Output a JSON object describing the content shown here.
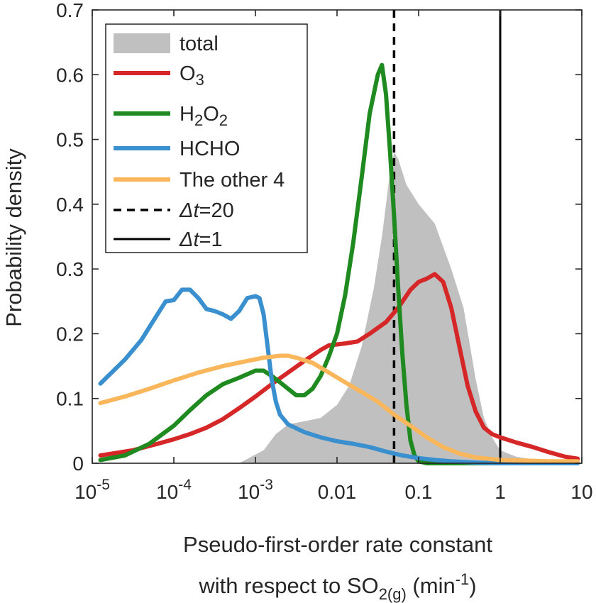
{
  "chart_data": {
    "type": "line",
    "x_scale": "log",
    "xlim": [
      1e-05,
      10
    ],
    "ylim": [
      0,
      0.7
    ],
    "grid": false,
    "legend_position": "top-left",
    "xlabel_line1": "Pseudo-first-order rate constant",
    "xlabel_line2": {
      "prefix": "with respect to SO",
      "sub": "2(g)",
      "middle": " (min",
      "sup": "-1",
      "suffix": ")"
    },
    "ylabel": "Probability density",
    "x_ticks": [
      {
        "value": 1e-05,
        "base": "10",
        "exp": "-5"
      },
      {
        "value": 0.0001,
        "base": "10",
        "exp": "-4"
      },
      {
        "value": 0.001,
        "base": "10",
        "exp": "-3"
      },
      {
        "value": 0.01,
        "label": "0.01"
      },
      {
        "value": 0.1,
        "label": "0.1"
      },
      {
        "value": 1,
        "label": "1"
      },
      {
        "value": 10,
        "label": "10"
      }
    ],
    "y_ticks": [
      {
        "value": 0,
        "label": "0"
      },
      {
        "value": 0.1,
        "label": "0.1"
      },
      {
        "value": 0.2,
        "label": "0.2"
      },
      {
        "value": 0.3,
        "label": "0.3"
      },
      {
        "value": 0.4,
        "label": "0.4"
      },
      {
        "value": 0.5,
        "label": "0.5"
      },
      {
        "value": 0.6,
        "label": "0.6"
      },
      {
        "value": 0.7,
        "label": "0.7"
      }
    ],
    "series": [
      {
        "id": "total",
        "name": "total",
        "kind": "area",
        "color": "#c0c0c0",
        "points": [
          [
            0.000631,
            0.0
          ],
          [
            0.00126,
            0.02
          ],
          [
            0.00178,
            0.045
          ],
          [
            0.00251,
            0.06
          ],
          [
            0.00398,
            0.065
          ],
          [
            0.00631,
            0.07
          ],
          [
            0.01,
            0.09
          ],
          [
            0.0141,
            0.12
          ],
          [
            0.02,
            0.18
          ],
          [
            0.0282,
            0.27
          ],
          [
            0.0355,
            0.35
          ],
          [
            0.0447,
            0.45
          ],
          [
            0.0501,
            0.48
          ],
          [
            0.0562,
            0.47
          ],
          [
            0.0708,
            0.43
          ],
          [
            0.1,
            0.4
          ],
          [
            0.158,
            0.37
          ],
          [
            0.251,
            0.3
          ],
          [
            0.355,
            0.24
          ],
          [
            0.5,
            0.13
          ],
          [
            0.631,
            0.07
          ],
          [
            0.794,
            0.04
          ],
          [
            1.0,
            0.02
          ],
          [
            1.58,
            0.01
          ],
          [
            3.16,
            0.004
          ],
          [
            8.91,
            0.002
          ],
          [
            8.91,
            0.0
          ]
        ]
      },
      {
        "id": "o3",
        "name": "O",
        "name_sub": "3",
        "kind": "line",
        "color": "#d62728",
        "points": [
          [
            1.26e-05,
            0.012
          ],
          [
            3.16e-05,
            0.02
          ],
          [
            6.31e-05,
            0.03
          ],
          [
            0.0001,
            0.037
          ],
          [
            0.000158,
            0.045
          ],
          [
            0.000251,
            0.055
          ],
          [
            0.000398,
            0.068
          ],
          [
            0.000631,
            0.085
          ],
          [
            0.001,
            0.103
          ],
          [
            0.00158,
            0.122
          ],
          [
            0.00251,
            0.14
          ],
          [
            0.00398,
            0.158
          ],
          [
            0.00631,
            0.175
          ],
          [
            0.00794,
            0.182
          ],
          [
            0.0126,
            0.185
          ],
          [
            0.0178,
            0.188
          ],
          [
            0.0251,
            0.2
          ],
          [
            0.0398,
            0.218
          ],
          [
            0.0562,
            0.24
          ],
          [
            0.0794,
            0.268
          ],
          [
            0.1,
            0.28
          ],
          [
            0.126,
            0.285
          ],
          [
            0.158,
            0.292
          ],
          [
            0.2,
            0.28
          ],
          [
            0.251,
            0.24
          ],
          [
            0.316,
            0.18
          ],
          [
            0.398,
            0.12
          ],
          [
            0.5,
            0.08
          ],
          [
            0.631,
            0.055
          ],
          [
            0.794,
            0.045
          ],
          [
            1.0,
            0.04
          ],
          [
            1.58,
            0.032
          ],
          [
            2.51,
            0.025
          ],
          [
            3.98,
            0.017
          ],
          [
            6.31,
            0.01
          ],
          [
            8.91,
            0.007
          ]
        ]
      },
      {
        "id": "h2o2",
        "name": "H",
        "name_sub": "2",
        "name_mid": "O",
        "name_sub2": "2",
        "kind": "line",
        "color": "#1f8a1f",
        "points": [
          [
            1.26e-05,
            0.005
          ],
          [
            2.51e-05,
            0.012
          ],
          [
            5.01e-05,
            0.03
          ],
          [
            0.0001,
            0.058
          ],
          [
            0.000158,
            0.082
          ],
          [
            0.000251,
            0.105
          ],
          [
            0.000398,
            0.122
          ],
          [
            0.000631,
            0.132
          ],
          [
            0.001,
            0.143
          ],
          [
            0.00126,
            0.143
          ],
          [
            0.00158,
            0.135
          ],
          [
            0.002,
            0.125
          ],
          [
            0.00251,
            0.115
          ],
          [
            0.00316,
            0.105
          ],
          [
            0.00398,
            0.105
          ],
          [
            0.00501,
            0.115
          ],
          [
            0.00631,
            0.135
          ],
          [
            0.00794,
            0.165
          ],
          [
            0.01,
            0.2
          ],
          [
            0.0126,
            0.26
          ],
          [
            0.0158,
            0.34
          ],
          [
            0.02,
            0.44
          ],
          [
            0.0251,
            0.54
          ],
          [
            0.0316,
            0.6
          ],
          [
            0.0355,
            0.615
          ],
          [
            0.0398,
            0.57
          ],
          [
            0.0447,
            0.48
          ],
          [
            0.0501,
            0.38
          ],
          [
            0.0562,
            0.27
          ],
          [
            0.0631,
            0.17
          ],
          [
            0.0708,
            0.09
          ],
          [
            0.0794,
            0.035
          ],
          [
            0.0891,
            0.012
          ],
          [
            0.1,
            0.003
          ],
          [
            0.126,
            0.0
          ],
          [
            0.2,
            0.0
          ],
          [
            0.5,
            0.0
          ],
          [
            1.0,
            0.0
          ],
          [
            3.16,
            0.0
          ],
          [
            8.91,
            0.0
          ]
        ]
      },
      {
        "id": "hcho",
        "name": "HCHO",
        "kind": "line",
        "color": "#3a8fcf",
        "points": [
          [
            1.26e-05,
            0.123
          ],
          [
            2.51e-05,
            0.16
          ],
          [
            3.98e-05,
            0.19
          ],
          [
            5.62e-05,
            0.22
          ],
          [
            7.94e-05,
            0.25
          ],
          [
            0.0001,
            0.252
          ],
          [
            0.000126,
            0.268
          ],
          [
            0.000158,
            0.268
          ],
          [
            0.0002,
            0.255
          ],
          [
            0.000251,
            0.238
          ],
          [
            0.000316,
            0.235
          ],
          [
            0.000398,
            0.23
          ],
          [
            0.000501,
            0.223
          ],
          [
            0.000631,
            0.235
          ],
          [
            0.000794,
            0.255
          ],
          [
            0.001,
            0.258
          ],
          [
            0.00112,
            0.255
          ],
          [
            0.00126,
            0.23
          ],
          [
            0.00141,
            0.18
          ],
          [
            0.00158,
            0.13
          ],
          [
            0.00178,
            0.095
          ],
          [
            0.002,
            0.075
          ],
          [
            0.00251,
            0.06
          ],
          [
            0.00398,
            0.048
          ],
          [
            0.00631,
            0.04
          ],
          [
            0.01,
            0.034
          ],
          [
            0.0158,
            0.03
          ],
          [
            0.0251,
            0.025
          ],
          [
            0.0398,
            0.018
          ],
          [
            0.0631,
            0.012
          ],
          [
            0.1,
            0.008
          ],
          [
            0.158,
            0.005
          ],
          [
            0.251,
            0.003
          ],
          [
            0.501,
            0.001
          ],
          [
            1.0,
            0.0
          ],
          [
            3.16,
            0.0
          ],
          [
            8.91,
            0.0
          ]
        ]
      },
      {
        "id": "other4",
        "name": "The other 4",
        "kind": "line",
        "color": "#f9b65a",
        "points": [
          [
            1.26e-05,
            0.093
          ],
          [
            2.51e-05,
            0.103
          ],
          [
            5.01e-05,
            0.115
          ],
          [
            0.0001,
            0.128
          ],
          [
            0.0002,
            0.14
          ],
          [
            0.000398,
            0.15
          ],
          [
            0.000794,
            0.158
          ],
          [
            0.00126,
            0.163
          ],
          [
            0.002,
            0.166
          ],
          [
            0.00251,
            0.166
          ],
          [
            0.00316,
            0.163
          ],
          [
            0.00501,
            0.155
          ],
          [
            0.00794,
            0.14
          ],
          [
            0.0126,
            0.125
          ],
          [
            0.02,
            0.11
          ],
          [
            0.0316,
            0.095
          ],
          [
            0.0501,
            0.075
          ],
          [
            0.0794,
            0.058
          ],
          [
            0.126,
            0.04
          ],
          [
            0.2,
            0.025
          ],
          [
            0.316,
            0.015
          ],
          [
            0.5,
            0.009
          ],
          [
            1.0,
            0.005
          ],
          [
            2.0,
            0.004
          ],
          [
            4.0,
            0.003
          ],
          [
            8.91,
            0.003
          ]
        ]
      }
    ],
    "reference_lines": [
      {
        "id": "dt20",
        "x": 0.05,
        "style": "dashed",
        "name": "Δt=20",
        "label_greek": "Δ",
        "label_var": "t",
        "label_rest": "=20"
      },
      {
        "id": "dt1",
        "x": 1,
        "style": "solid",
        "name": "Δt=1",
        "label_greek": "Δ",
        "label_var": "t",
        "label_rest": "=1"
      }
    ]
  }
}
